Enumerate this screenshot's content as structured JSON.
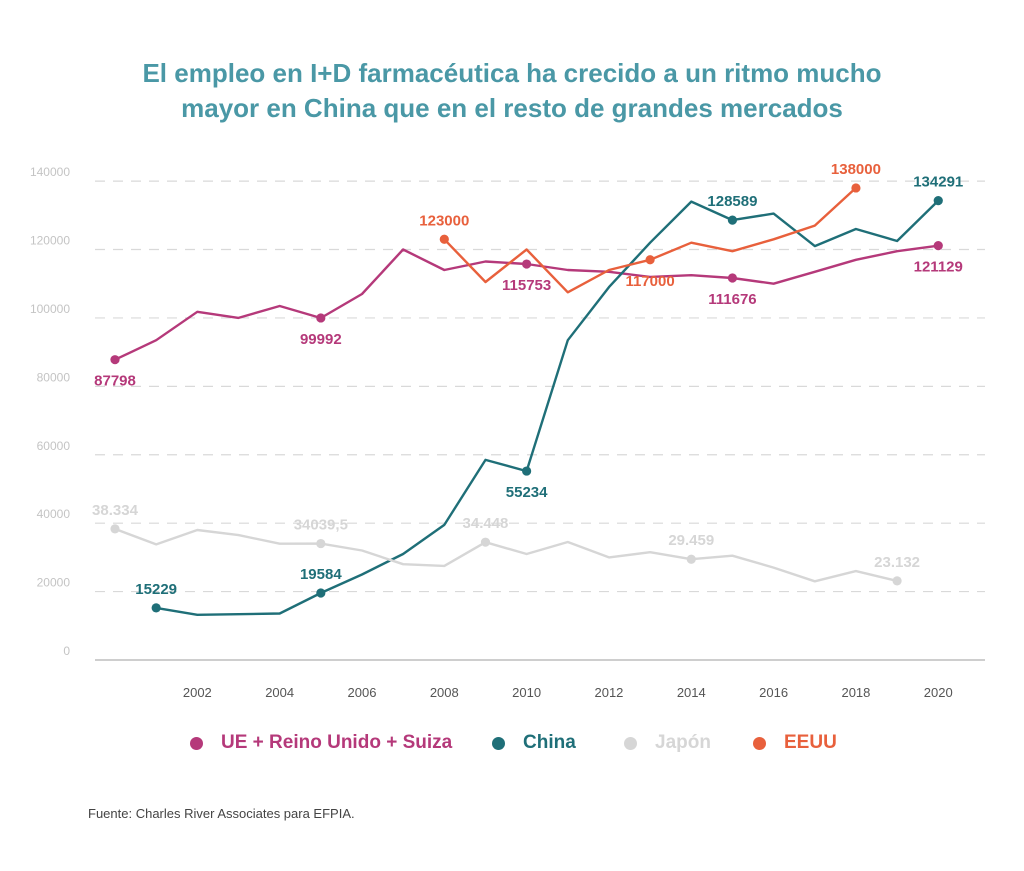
{
  "title_lines": [
    "El empleo en I+D farmacéutica ha crecido a un ritmo mucho",
    "mayor en China que en el resto de grandes mercados"
  ],
  "source": "Fuente: Charles River Associates para EFPIA.",
  "colors": {
    "title": "#4a98a6",
    "eu": "#b5397a",
    "china": "#1f6f78",
    "japan": "#d6d6d6",
    "usa": "#e8603c",
    "grid": "#d9d9d9",
    "axis": "#bdbdbd",
    "tick": "#555555",
    "ytick": "#c4c4c4"
  },
  "chart_data": {
    "type": "line",
    "title": "El empleo en I+D farmacéutica ha crecido a un ritmo mucho mayor en China que en el resto de grandes mercados",
    "xlim": [
      2000,
      2021.5
    ],
    "ylim": [
      0,
      145000
    ],
    "x_ticks": [
      2002,
      2004,
      2006,
      2008,
      2010,
      2012,
      2014,
      2016,
      2018,
      2020
    ],
    "y_ticks": [
      0,
      20000,
      40000,
      60000,
      80000,
      100000,
      120000,
      140000
    ],
    "grid": "horizontal dashed",
    "legend_position": "bottom",
    "series": [
      {
        "name": "UE + Reino Unido + Suiza",
        "color_key": "eu",
        "x": [
          2000,
          2001,
          2002,
          2003,
          2004,
          2005,
          2006,
          2007,
          2008,
          2009,
          2010,
          2011,
          2012,
          2013,
          2014,
          2015,
          2016,
          2017,
          2018,
          2019,
          2020
        ],
        "y": [
          87798,
          93500,
          101800,
          100000,
          103500,
          99992,
          107000,
          120000,
          114000,
          116500,
          115753,
          114000,
          113500,
          112000,
          112500,
          111676,
          110000,
          113500,
          117000,
          119500,
          121129
        ],
        "labels": [
          {
            "x": 2000,
            "y": 87798,
            "text": "87798",
            "pos": "below"
          },
          {
            "x": 2005,
            "y": 99992,
            "text": "99992",
            "pos": "below"
          },
          {
            "x": 2010,
            "y": 115753,
            "text": "115753",
            "pos": "below"
          },
          {
            "x": 2015,
            "y": 111676,
            "text": "111676",
            "pos": "below"
          },
          {
            "x": 2020,
            "y": 121129,
            "text": "121129",
            "pos": "below"
          }
        ]
      },
      {
        "name": "China",
        "color_key": "china",
        "x": [
          2001,
          2002,
          2003,
          2004,
          2005,
          2006,
          2007,
          2008,
          2009,
          2010,
          2011,
          2012,
          2013,
          2014,
          2015,
          2016,
          2017,
          2018,
          2019,
          2020
        ],
        "y": [
          15229,
          13200,
          13400,
          13600,
          19584,
          25000,
          31000,
          39500,
          58500,
          55234,
          93500,
          109000,
          122000,
          134000,
          128589,
          130500,
          121000,
          126000,
          122500,
          134291
        ],
        "labels": [
          {
            "x": 2001,
            "y": 15229,
            "text": "15229",
            "pos": "above"
          },
          {
            "x": 2005,
            "y": 19584,
            "text": "19584",
            "pos": "above"
          },
          {
            "x": 2010,
            "y": 55234,
            "text": "55234",
            "pos": "below"
          },
          {
            "x": 2015,
            "y": 128589,
            "text": "128589",
            "pos": "above"
          },
          {
            "x": 2020,
            "y": 134291,
            "text": "134291",
            "pos": "above"
          }
        ]
      },
      {
        "name": "Japón",
        "color_key": "japan",
        "x": [
          2000,
          2001,
          2002,
          2003,
          2004,
          2005,
          2006,
          2007,
          2008,
          2009,
          2010,
          2011,
          2012,
          2013,
          2014,
          2015,
          2016,
          2017,
          2018,
          2019
        ],
        "y": [
          38334,
          33800,
          38000,
          36500,
          34000,
          34039.5,
          32000,
          28000,
          27500,
          34448,
          31000,
          34500,
          30000,
          31500,
          29459,
          30500,
          27000,
          23000,
          26000,
          23132
        ],
        "labels": [
          {
            "x": 2000,
            "y": 38334,
            "text": "38.334",
            "pos": "above"
          },
          {
            "x": 2005,
            "y": 34039.5,
            "text": "34039,5",
            "pos": "above"
          },
          {
            "x": 2009,
            "y": 34448,
            "text": "34.448",
            "pos": "above"
          },
          {
            "x": 2014,
            "y": 29459,
            "text": "29.459",
            "pos": "above"
          },
          {
            "x": 2019,
            "y": 23132,
            "text": "23.132",
            "pos": "above"
          }
        ]
      },
      {
        "name": "EEUU",
        "color_key": "usa",
        "x": [
          2008,
          2009,
          2010,
          2011,
          2012,
          2013,
          2014,
          2015,
          2016,
          2017,
          2018
        ],
        "y": [
          123000,
          110500,
          120000,
          107500,
          114000,
          117000,
          122000,
          119500,
          123000,
          127000,
          138000
        ],
        "labels": [
          {
            "x": 2008,
            "y": 123000,
            "text": "123000",
            "pos": "above"
          },
          {
            "x": 2013,
            "y": 117000,
            "text": "117000",
            "pos": "below"
          },
          {
            "x": 2018,
            "y": 138000,
            "text": "138000",
            "pos": "above"
          }
        ]
      }
    ]
  }
}
